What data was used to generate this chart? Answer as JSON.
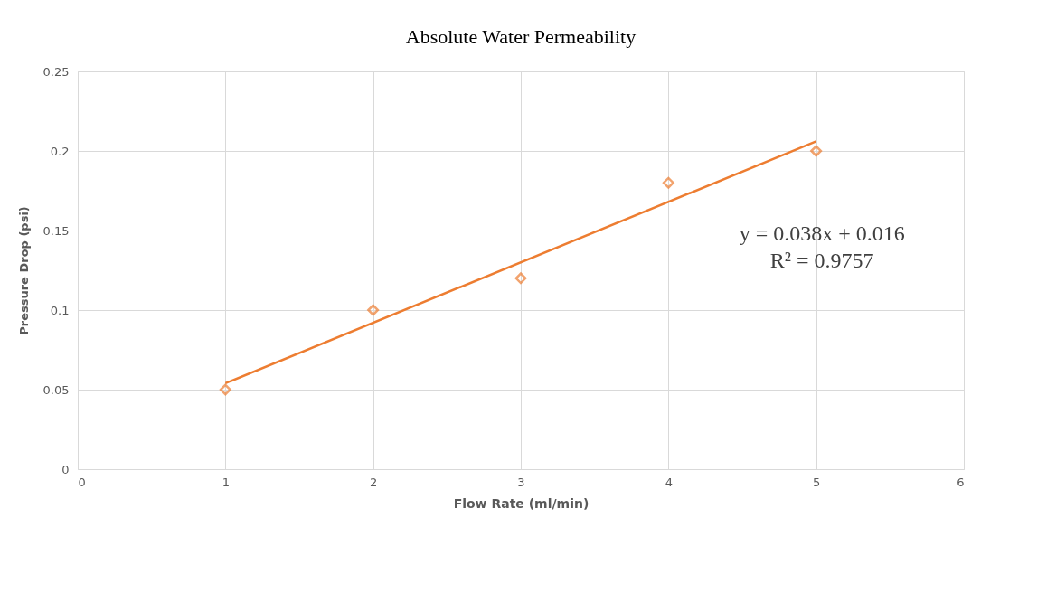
{
  "chart_data": {
    "type": "scatter",
    "title": "Absolute Water Permeability",
    "xlabel": "Flow Rate (ml/min)",
    "ylabel": "Pressure Drop (psi)",
    "series": [
      {
        "color": "#ed7d31",
        "marker": "diamond",
        "x": [
          1,
          2,
          3,
          4,
          5
        ],
        "values": [
          0.05,
          0.1,
          0.12,
          0.18,
          0.2
        ]
      },
      {
        "type": "line",
        "color": "#ed7d31",
        "marker": "none",
        "line_style": "solid",
        "x": [
          1,
          5
        ],
        "values": [
          0.054,
          0.206
        ]
      }
    ],
    "annotations": [
      "y = 0.038x + 0.016",
      "R² = 0.9757"
    ],
    "xlim": [
      0,
      6
    ],
    "xticks": [
      0,
      1,
      2,
      3,
      4,
      5,
      6
    ],
    "ylim": [
      0,
      0.25
    ],
    "yticks": [
      0,
      0.05,
      0.1,
      0.15,
      0.2,
      0.25
    ],
    "grid": true
  }
}
